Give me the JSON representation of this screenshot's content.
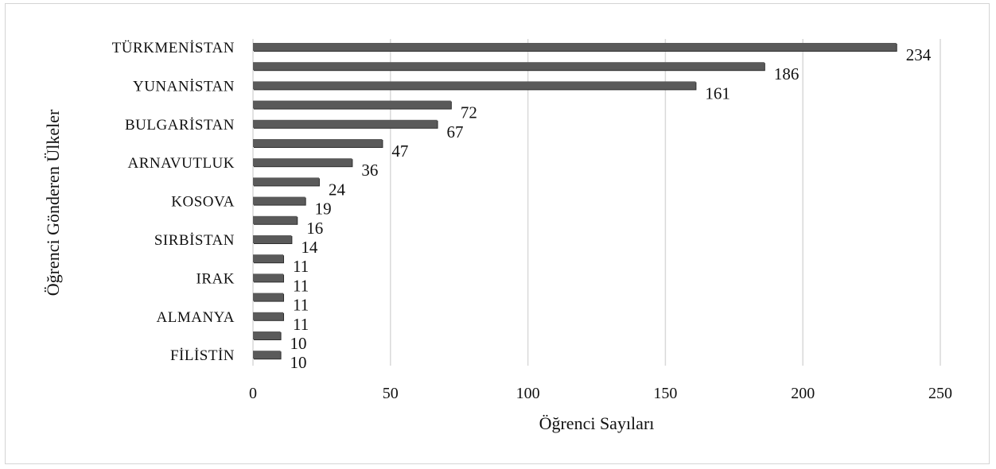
{
  "chart_data": {
    "type": "bar",
    "orientation": "horizontal",
    "xlabel": "Öğrenci Sayıları",
    "ylabel": "Öğrenci Gönderen Ülkeler",
    "xlim": [
      0,
      250
    ],
    "xticks": [
      0,
      50,
      100,
      150,
      200,
      250
    ],
    "grid": "vertical",
    "bar_color": "#5a5a5a",
    "categories": [
      "TÜRKMENİSTAN",
      "",
      "YUNANİSTAN",
      "",
      "BULGARİSTAN",
      "",
      "ARNAVUTLUK",
      "",
      "KOSOVA",
      "",
      "SIRBİSTAN",
      "",
      "IRAK",
      "",
      "ALMANYA",
      "",
      "FİLİSTİN"
    ],
    "values": [
      234,
      186,
      161,
      72,
      67,
      47,
      36,
      24,
      19,
      16,
      14,
      11,
      11,
      11,
      11,
      10,
      10
    ]
  }
}
